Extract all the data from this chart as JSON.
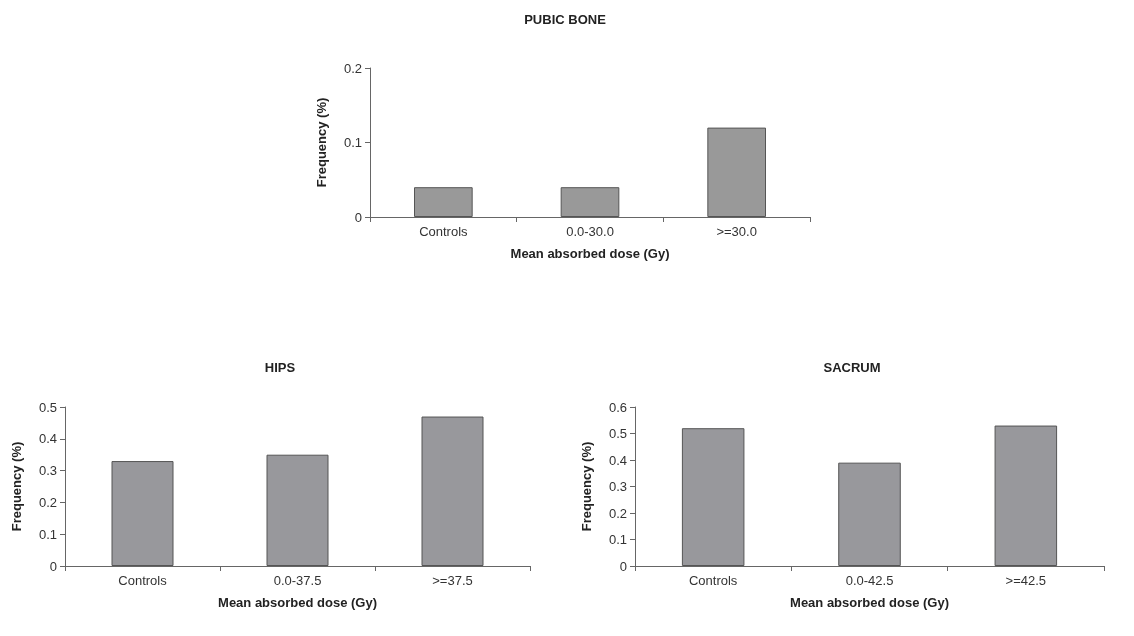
{
  "chart_data": [
    {
      "type": "bar",
      "title": "PUBIC BONE",
      "xlabel": "Mean absorbed dose (Gy)",
      "ylabel": "Frequency (%)",
      "categories": [
        "Controls",
        "0.0-30.0",
        ">=30.0"
      ],
      "values": [
        0.04,
        0.04,
        0.12
      ],
      "color": "#999999",
      "ylim": [
        0,
        0.2
      ],
      "yticks": [
        0,
        0.1,
        0.2
      ],
      "grid": false
    },
    {
      "type": "bar",
      "title": "HIPS",
      "xlabel": "Mean absorbed dose (Gy)",
      "ylabel": "Frequency (%)",
      "categories": [
        "Controls",
        "0.0-37.5",
        ">=37.5"
      ],
      "values": [
        0.33,
        0.35,
        0.47
      ],
      "color": "#98989c",
      "ylim": [
        0,
        0.5
      ],
      "yticks": [
        0,
        0.1,
        0.2,
        0.3,
        0.4,
        0.5
      ],
      "grid": false
    },
    {
      "type": "bar",
      "title": "SACRUM",
      "xlabel": "Mean absorbed dose (Gy)",
      "ylabel": "Frequency (%)",
      "categories": [
        "Controls",
        "0.0-42.5",
        ">=42.5"
      ],
      "values": [
        0.52,
        0.39,
        0.53
      ],
      "color": "#98989c",
      "ylim": [
        0,
        0.6
      ],
      "yticks": [
        0,
        0.1,
        0.2,
        0.3,
        0.4,
        0.5,
        0.6
      ],
      "grid": false
    }
  ]
}
